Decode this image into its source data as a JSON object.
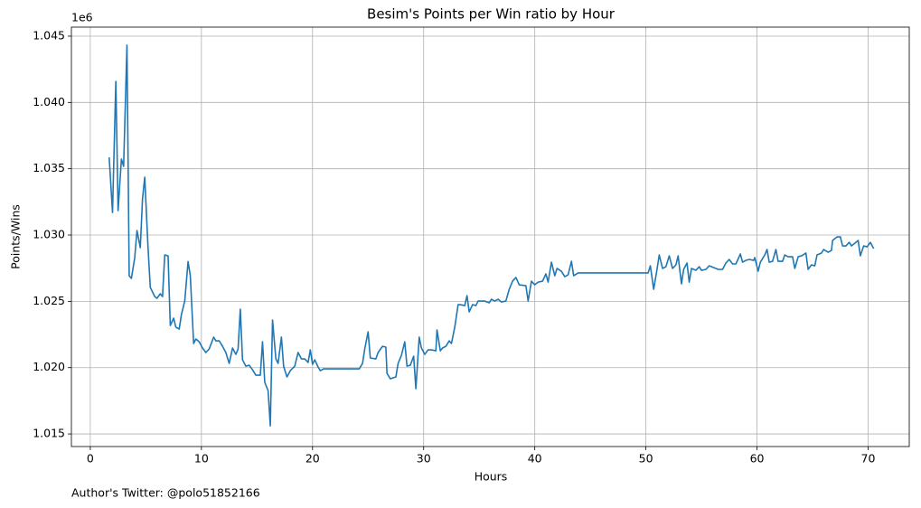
{
  "chart_data": {
    "type": "line",
    "title": "Besim's Points per Win ratio by Hour",
    "x_label": "Hours",
    "y_label": "Points/Wins",
    "y_offset_label": "1e6",
    "footnote": "Author's Twitter: @polo51852166",
    "grid": true,
    "xlim": [
      -1.7,
      73.7
    ],
    "xticks": [
      0,
      10,
      20,
      30,
      40,
      50,
      60,
      70
    ],
    "ylim": [
      1014050,
      1045680
    ],
    "yticks": [
      {
        "value": 1015000,
        "label": "1.015"
      },
      {
        "value": 1020000,
        "label": "1.020"
      },
      {
        "value": 1025000,
        "label": "1.025"
      },
      {
        "value": 1030000,
        "label": "1.030"
      },
      {
        "value": 1035000,
        "label": "1.035"
      },
      {
        "value": 1040000,
        "label": "1.040"
      },
      {
        "value": 1045000,
        "label": "1.045"
      }
    ],
    "x": [
      1.7,
      2.0,
      2.3,
      2.5,
      2.8,
      3.0,
      3.3,
      3.5,
      3.7,
      4.0,
      4.2,
      4.5,
      4.7,
      4.9,
      5.2,
      5.4,
      5.8,
      6.0,
      6.3,
      6.5,
      6.7,
      7.0,
      7.2,
      7.5,
      7.7,
      8.0,
      8.2,
      8.5,
      8.8,
      9.0,
      9.3,
      9.5,
      9.8,
      10.1,
      10.4,
      10.7,
      11.1,
      11.3,
      11.6,
      11.9,
      12.2,
      12.5,
      12.8,
      13.1,
      13.3,
      13.5,
      13.7,
      14.0,
      14.3,
      14.6,
      14.9,
      15.3,
      15.5,
      15.7,
      16.0,
      16.2,
      16.4,
      16.7,
      16.9,
      17.2,
      17.4,
      17.7,
      18.0,
      18.4,
      18.7,
      19.0,
      19.3,
      19.6,
      19.8,
      20.0,
      20.2,
      20.5,
      20.7,
      21.0,
      24.2,
      24.5,
      24.7,
      25.0,
      25.2,
      25.7,
      25.9,
      26.3,
      26.6,
      26.7,
      27.0,
      27.5,
      27.7,
      28.0,
      28.3,
      28.5,
      28.8,
      29.1,
      29.3,
      29.6,
      29.8,
      30.1,
      30.4,
      30.7,
      31.1,
      31.2,
      31.5,
      31.7,
      32.0,
      32.3,
      32.5,
      32.8,
      33.1,
      33.3,
      33.7,
      33.9,
      34.1,
      34.4,
      34.7,
      34.9,
      35.5,
      35.9,
      36.1,
      36.4,
      36.7,
      37.0,
      37.4,
      37.7,
      38.0,
      38.3,
      38.6,
      39.2,
      39.4,
      39.7,
      40.0,
      40.3,
      40.7,
      41.0,
      41.2,
      41.5,
      41.8,
      42.0,
      42.4,
      42.7,
      43.0,
      43.3,
      43.5,
      43.9,
      49.9,
      50.2,
      50.4,
      50.7,
      51.0,
      51.2,
      51.5,
      51.8,
      52.1,
      52.4,
      52.7,
      52.9,
      53.2,
      53.4,
      53.7,
      53.9,
      54.1,
      54.5,
      54.8,
      55.0,
      55.4,
      55.7,
      56.1,
      56.5,
      56.9,
      57.2,
      57.5,
      57.8,
      58.1,
      58.5,
      58.7,
      59.0,
      59.3,
      59.7,
      59.8,
      60.1,
      60.3,
      60.7,
      60.9,
      61.1,
      61.4,
      61.7,
      61.9,
      62.3,
      62.5,
      62.8,
      63.2,
      63.4,
      63.7,
      64.0,
      64.4,
      64.6,
      64.9,
      65.2,
      65.4,
      65.8,
      66.0,
      66.4,
      66.7,
      66.8,
      67.2,
      67.5,
      67.7,
      68.0,
      68.3,
      68.5,
      68.9,
      69.1,
      69.3,
      69.6,
      69.9,
      70.2,
      70.5
    ],
    "series": [
      {
        "name": "Points/Wins",
        "color": "#1f77b4",
        "values": [
          1035860,
          1031700,
          1041590,
          1031840,
          1035730,
          1035180,
          1044320,
          1026930,
          1026730,
          1028300,
          1030340,
          1029050,
          1032730,
          1034360,
          1028980,
          1026050,
          1025360,
          1025230,
          1025570,
          1025360,
          1028500,
          1028430,
          1023180,
          1023730,
          1023050,
          1022910,
          1024000,
          1025020,
          1028000,
          1026930,
          1021820,
          1022160,
          1021950,
          1021480,
          1021140,
          1021410,
          1022300,
          1022020,
          1022020,
          1021610,
          1021140,
          1020320,
          1021480,
          1021000,
          1021410,
          1024410,
          1020590,
          1020110,
          1020180,
          1019840,
          1019430,
          1019430,
          1021950,
          1018890,
          1018270,
          1015610,
          1023590,
          1020660,
          1020320,
          1022300,
          1020090,
          1019300,
          1019770,
          1020110,
          1021140,
          1020660,
          1020660,
          1020390,
          1021340,
          1020250,
          1020590,
          1020050,
          1019770,
          1019910,
          1019910,
          1020320,
          1021410,
          1022700,
          1020730,
          1020660,
          1021140,
          1021610,
          1021550,
          1019570,
          1019160,
          1019300,
          1020320,
          1020930,
          1021950,
          1020110,
          1020180,
          1020860,
          1018410,
          1022300,
          1021480,
          1021000,
          1021340,
          1021340,
          1021270,
          1022840,
          1021270,
          1021480,
          1021610,
          1022020,
          1021820,
          1023050,
          1024750,
          1024750,
          1024680,
          1025430,
          1024200,
          1024750,
          1024680,
          1025020,
          1025020,
          1024890,
          1025160,
          1025020,
          1025160,
          1024950,
          1025020,
          1025910,
          1026520,
          1026800,
          1026250,
          1026180,
          1025020,
          1026520,
          1026250,
          1026450,
          1026520,
          1027070,
          1026450,
          1027950,
          1026930,
          1027480,
          1027270,
          1026860,
          1027000,
          1028020,
          1026930,
          1027140,
          1027140,
          1027140,
          1027680,
          1025910,
          1027410,
          1028500,
          1027480,
          1027610,
          1028430,
          1027480,
          1027750,
          1028430,
          1026320,
          1027410,
          1027890,
          1026450,
          1027480,
          1027340,
          1027610,
          1027340,
          1027410,
          1027680,
          1027550,
          1027410,
          1027410,
          1027890,
          1028160,
          1027820,
          1027820,
          1028570,
          1027950,
          1028090,
          1028160,
          1028090,
          1028300,
          1027270,
          1027950,
          1028500,
          1028910,
          1027950,
          1028020,
          1028910,
          1028020,
          1028020,
          1028500,
          1028360,
          1028360,
          1027480,
          1028360,
          1028430,
          1028640,
          1027410,
          1027750,
          1027680,
          1028500,
          1028640,
          1028910,
          1028700,
          1028840,
          1029590,
          1029860,
          1029860,
          1029180,
          1029180,
          1029450,
          1029180,
          1029450,
          1029590,
          1028430,
          1029180,
          1029110,
          1029450,
          1028980
        ]
      }
    ]
  }
}
